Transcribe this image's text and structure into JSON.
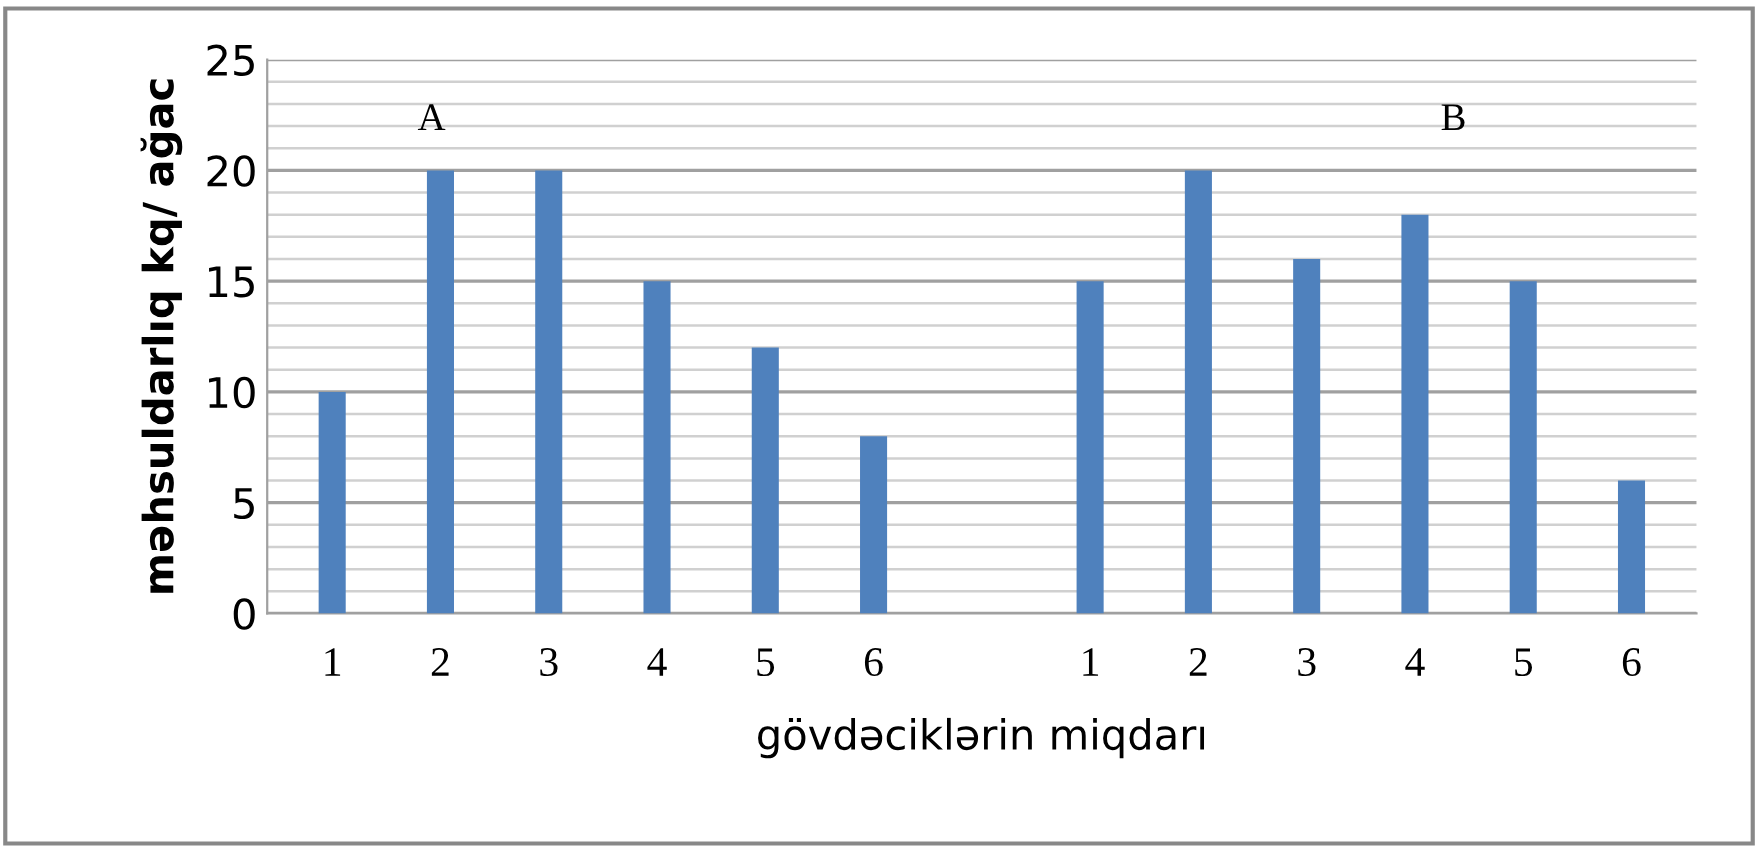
{
  "chart_data": {
    "type": "bar",
    "xlabel": "gövdəciklərin miqdarı",
    "ylabel": "məhsuldarlıq kq/ ağac",
    "categories": [
      "1",
      "2",
      "3",
      "4",
      "5",
      "6",
      null,
      "1",
      "2",
      "3",
      "4",
      "5",
      "6"
    ],
    "values": [
      10,
      20,
      20,
      15,
      12,
      8,
      null,
      15,
      20,
      16,
      18,
      15,
      6
    ],
    "color": "#4f81bd",
    "ylim": [
      0,
      25
    ],
    "yticks": [
      0,
      5,
      10,
      15,
      20,
      25
    ],
    "grid": "y",
    "annotations": [
      "A",
      "B"
    ]
  }
}
